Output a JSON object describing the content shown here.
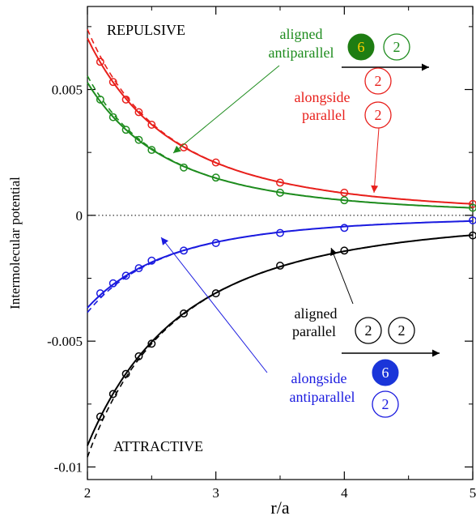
{
  "chart_data": {
    "type": "line",
    "title": "",
    "xlabel": "r/a",
    "ylabel": "Intermolecular potential",
    "xlim": [
      2,
      5
    ],
    "ylim": [
      -0.0105,
      0.0083
    ],
    "x_ticks": [
      2,
      3,
      4,
      5
    ],
    "y_ticks": [
      -0.01,
      -0.005,
      0,
      0.005
    ],
    "x_tick_labels": [
      "2",
      "3",
      "4",
      "5"
    ],
    "y_tick_labels": [
      "-0.01",
      "-0.005",
      "0",
      "0.005"
    ],
    "grid": false,
    "legend": "none",
    "region_labels": {
      "repulsive": "REPULSIVE",
      "attractive": "ATTRACTIVE"
    },
    "annotations": {
      "aligned_antiparallel": {
        "line1": "aligned",
        "line2": "antiparallel",
        "glyph_a": "6",
        "glyph_b": "2"
      },
      "alongside_parallel": {
        "line1": "alongside",
        "line2": "parallel",
        "glyph_a": "2",
        "glyph_b": "2"
      },
      "aligned_parallel": {
        "line1": "aligned",
        "line2": "parallel",
        "glyph_a": "2",
        "glyph_b": "2"
      },
      "alongside_antiparallel": {
        "line1": "alongside",
        "line2": "antiparallel",
        "glyph_a": "6",
        "glyph_b": "2"
      }
    },
    "series": [
      {
        "key": "alongside_parallel",
        "color": "#e8201c",
        "x": [
          2.1,
          2.2,
          2.3,
          2.4,
          2.5,
          2.75,
          3.0,
          3.5,
          4.0,
          5.0
        ],
        "values": [
          0.0061,
          0.0053,
          0.0046,
          0.0041,
          0.0036,
          0.0027,
          0.0021,
          0.0013,
          0.0009,
          0.00045
        ]
      },
      {
        "key": "aligned_antiparallel",
        "color": "#1e8c1e",
        "x": [
          2.1,
          2.2,
          2.3,
          2.4,
          2.5,
          2.75,
          3.0,
          3.5,
          4.0,
          5.0
        ],
        "values": [
          0.0046,
          0.0039,
          0.0034,
          0.003,
          0.0026,
          0.0019,
          0.0015,
          0.0009,
          0.0006,
          0.0003
        ]
      },
      {
        "key": "alongside_antiparallel",
        "color": "#1a1adf",
        "x": [
          2.1,
          2.2,
          2.3,
          2.4,
          2.5,
          2.75,
          3.0,
          3.5,
          4.0,
          5.0
        ],
        "values": [
          -0.0031,
          -0.0027,
          -0.0024,
          -0.0021,
          -0.0018,
          -0.0014,
          -0.0011,
          -0.0007,
          -0.0005,
          -0.0002
        ]
      },
      {
        "key": "aligned_parallel",
        "color": "#000000",
        "x": [
          2.1,
          2.2,
          2.3,
          2.4,
          2.5,
          2.75,
          3.0,
          3.5,
          4.0,
          5.0
        ],
        "values": [
          -0.008,
          -0.0071,
          -0.0063,
          -0.0056,
          -0.0051,
          -0.0039,
          -0.0031,
          -0.002,
          -0.0014,
          -0.0008
        ]
      }
    ]
  }
}
